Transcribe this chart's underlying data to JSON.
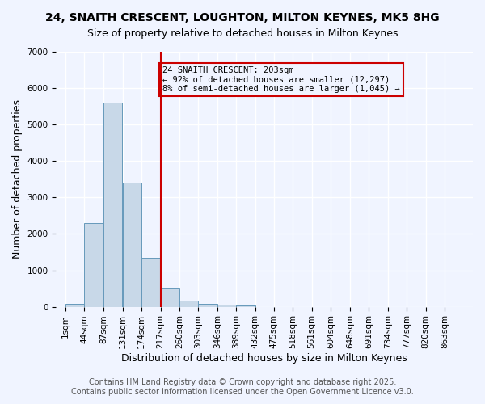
{
  "title_line1": "24, SNAITH CRESCENT, LOUGHTON, MILTON KEYNES, MK5 8HG",
  "title_line2": "Size of property relative to detached houses in Milton Keynes",
  "xlabel": "Distribution of detached houses by size in Milton Keynes",
  "ylabel": "Number of detached properties",
  "bin_labels": [
    "1sqm",
    "44sqm",
    "87sqm",
    "131sqm",
    "174sqm",
    "217sqm",
    "260sqm",
    "303sqm",
    "346sqm",
    "389sqm",
    "432sqm",
    "475sqm",
    "518sqm",
    "561sqm",
    "604sqm",
    "648sqm",
    "691sqm",
    "734sqm",
    "777sqm",
    "820sqm",
    "863sqm"
  ],
  "bin_edges": [
    1,
    44,
    87,
    131,
    174,
    217,
    260,
    303,
    346,
    389,
    432,
    475,
    518,
    561,
    604,
    648,
    691,
    734,
    777,
    820,
    863
  ],
  "bar_heights": [
    75,
    2300,
    5600,
    3400,
    1350,
    500,
    175,
    75,
    50,
    25,
    0,
    0,
    0,
    0,
    0,
    0,
    0,
    0,
    0,
    0
  ],
  "bar_color": "#c8d8e8",
  "bar_edgecolor": "#6699bb",
  "vline_x": 217,
  "vline_color": "#cc0000",
  "ylim": [
    0,
    7000
  ],
  "yticks": [
    0,
    1000,
    2000,
    3000,
    4000,
    5000,
    6000,
    7000
  ],
  "annotation_text": "24 SNAITH CRESCENT: 203sqm\n← 92% of detached houses are smaller (12,297)\n8% of semi-detached houses are larger (1,045) →",
  "annotation_box_color": "#cc0000",
  "background_color": "#f0f4ff",
  "grid_color": "#ffffff",
  "footer_line1": "Contains HM Land Registry data © Crown copyright and database right 2025.",
  "footer_line2": "Contains public sector information licensed under the Open Government Licence v3.0.",
  "title_fontsize": 10,
  "axis_label_fontsize": 9,
  "tick_fontsize": 7.5,
  "footer_fontsize": 7
}
